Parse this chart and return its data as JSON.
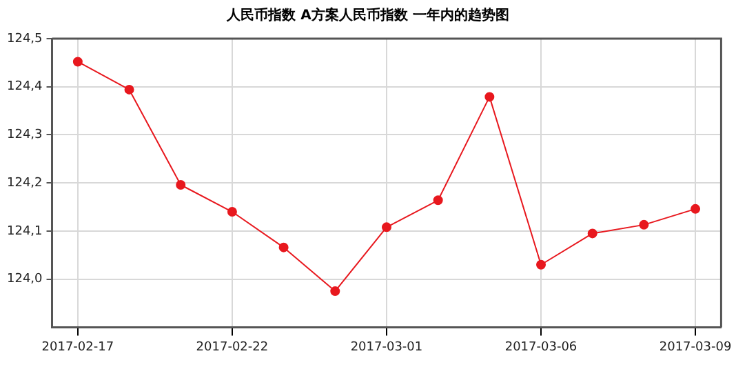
{
  "chart_data": {
    "type": "line",
    "title": "人民币指数 A方案人民币指数 一年内的趋势图",
    "categories": [
      "2017-02-17",
      null,
      null,
      "2017-02-22",
      null,
      null,
      "2017-03-01",
      null,
      null,
      "2017-03-06",
      null,
      null,
      "2017-03-09"
    ],
    "series": [
      {
        "color": "#e8181e",
        "values": [
          124.452,
          124.394,
          124.196,
          124.14,
          124.066,
          123.975,
          124.108,
          124.164,
          124.379,
          124.03,
          124.095,
          124.113,
          124.146
        ]
      }
    ],
    "ylim": [
      123.9,
      124.5
    ],
    "yticks": [
      {
        "value": 124.0,
        "label": "124,0"
      },
      {
        "value": 124.1,
        "label": "124,1"
      },
      {
        "value": 124.2,
        "label": "124,2"
      },
      {
        "value": 124.3,
        "label": "124,3"
      },
      {
        "value": 124.4,
        "label": "124,4"
      },
      {
        "value": 124.5,
        "label": "124,5"
      }
    ],
    "grid": true,
    "legend": false,
    "marker": "circle",
    "line_style": "solid"
  }
}
